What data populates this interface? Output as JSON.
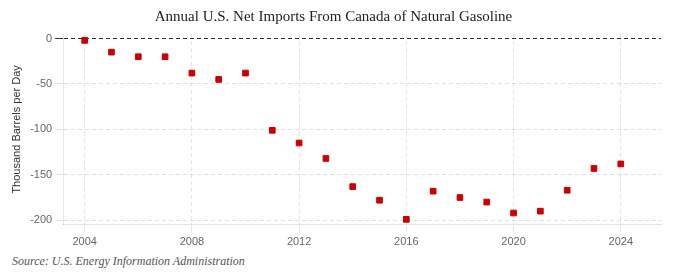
{
  "chart_data": {
    "type": "scatter",
    "title": "Annual U.S. Net Imports From Canada of Natural Gasoline",
    "ylabel": "Thousand Barrels per Day",
    "source": "Source: U.S. Energy Information Administration",
    "x": [
      2004,
      2005,
      2006,
      2007,
      2008,
      2009,
      2010,
      2011,
      2012,
      2013,
      2014,
      2015,
      2016,
      2017,
      2018,
      2019,
      2020,
      2021,
      2022,
      2023,
      2024
    ],
    "values": [
      -2,
      -15,
      -20,
      -20,
      -38,
      -45,
      -38,
      -101,
      -115,
      -132,
      -163,
      -178,
      -199,
      -168,
      -175,
      -180,
      -192,
      -190,
      -167,
      -143,
      -138
    ],
    "color": "#cc0000",
    "marker": "square",
    "xlim": [
      2003.2,
      2025.5
    ],
    "xticks": [
      2004,
      2008,
      2012,
      2016,
      2020,
      2024
    ],
    "ylim": [
      -205,
      5
    ],
    "yticks": [
      0,
      -50,
      -100,
      -150,
      -200
    ],
    "grid": true
  }
}
